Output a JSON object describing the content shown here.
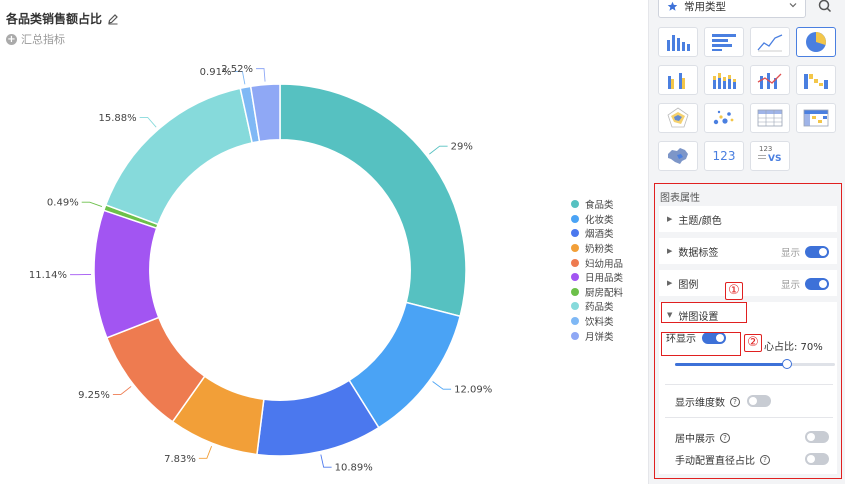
{
  "chart_header": {
    "title": "各品类销售额占比",
    "summary_label": "汇总指标"
  },
  "chart_data": {
    "type": "pie",
    "style": "donut",
    "inner_radius_ratio": 0.7,
    "title": "各品类销售额占比",
    "legend_position": "right",
    "slices": [
      {
        "name": "食品类",
        "value": 29,
        "label": "29%",
        "color": "#56c1c1"
      },
      {
        "name": "化妆类",
        "value": 12.09,
        "label": "12.09%",
        "color": "#4aa3f5"
      },
      {
        "name": "烟酒类",
        "value": 10.89,
        "label": "10.89%",
        "color": "#4b78ee"
      },
      {
        "name": "奶粉类",
        "value": 7.83,
        "label": "7.83%",
        "color": "#f29f38"
      },
      {
        "name": "妇幼用品",
        "value": 9.25,
        "label": "9.25%",
        "color": "#ee7b50"
      },
      {
        "name": "日用品类",
        "value": 11.14,
        "label": "11.14%",
        "color": "#a255f2"
      },
      {
        "name": "厨房配料",
        "value": 0.49,
        "label": "0.49%",
        "color": "#6cc04a"
      },
      {
        "name": "药品类",
        "value": 15.88,
        "label": "15.88%",
        "color": "#86dadb"
      },
      {
        "name": "饮料类",
        "value": 0.91,
        "label": "0.91%",
        "color": "#7fb8f5"
      },
      {
        "name": "月饼类",
        "value": 2.52,
        "label": "2.52%",
        "color": "#8fa8f5"
      }
    ]
  },
  "sidebar": {
    "type_select": "常用类型",
    "chart_types": [
      {
        "name": "bar-chart-type-icon"
      },
      {
        "name": "horizontal-bar-chart-type-icon"
      },
      {
        "name": "line-chart-type-icon"
      },
      {
        "name": "pie-chart-type-icon",
        "active": true
      },
      {
        "name": "grouped-bar-chart-type-icon"
      },
      {
        "name": "stacked-bar-chart-type-icon"
      },
      {
        "name": "bar-line-combo-chart-type-icon"
      },
      {
        "name": "waterfall-chart-type-icon"
      },
      {
        "name": "radar-chart-type-icon"
      },
      {
        "name": "scatter-chart-type-icon"
      },
      {
        "name": "table-chart-type-icon"
      },
      {
        "name": "pivot-table-chart-type-icon"
      },
      {
        "name": "map-chart-type-icon"
      },
      {
        "name": "kpi-chart-type-icon",
        "text": "123"
      },
      {
        "name": "comparison-kpi-chart-type-icon",
        "text": "123",
        "subtext": "VS"
      }
    ],
    "props": {
      "title": "图表属性",
      "theme_color": "主题/颜色",
      "data_label": "数据标签",
      "legend": "图例",
      "show_text": "显示",
      "pie_settings": "饼图设置",
      "ring_show": "环显示",
      "ring_ratio": "心占比: 70%",
      "show_dimension_count": "显示维度数",
      "center_display": "居中展示",
      "manual_radius": "手动配置直径占比",
      "help_glyph": "?"
    },
    "annotations": {
      "marker_1": "①",
      "marker_2": "②"
    }
  }
}
